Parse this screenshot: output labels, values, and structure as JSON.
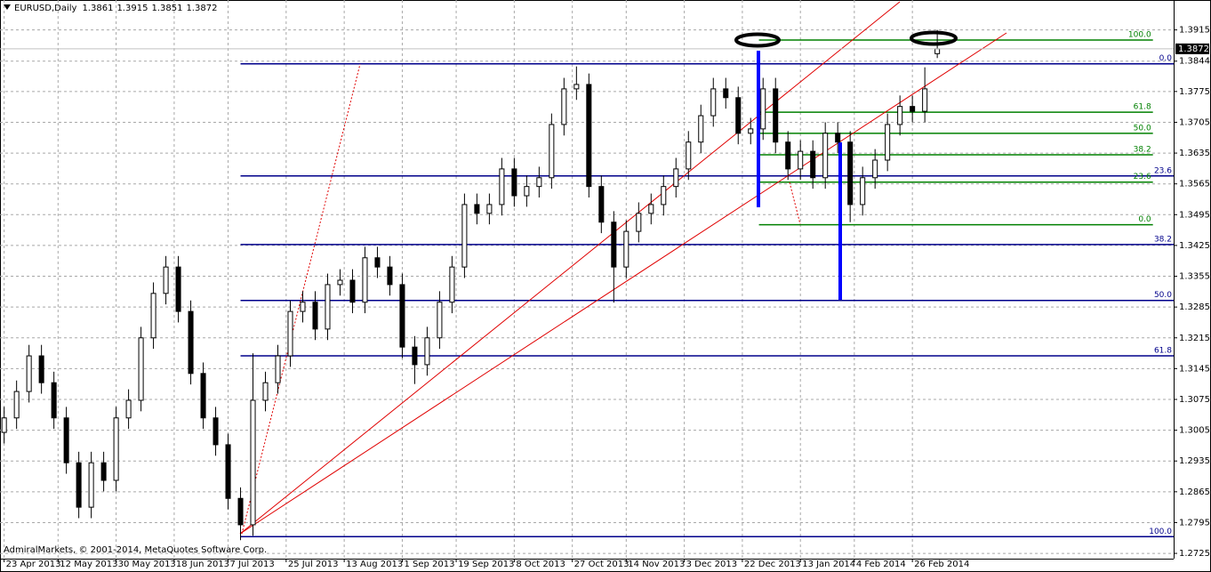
{
  "chart_data": {
    "type": "candlestick",
    "title": "EURUSD,Daily",
    "credit": "AdmiralMarkets, © 2001-2014, MetaQuotes Software Corp.",
    "up_color": "#ffffff",
    "down_color": "#000000",
    "grid": true,
    "xlim": [
      0,
      283
    ],
    "ylim": [
      1.2713,
      1.3983
    ],
    "xticks": [
      {
        "value": 1,
        "label": "23 Apr 2013"
      },
      {
        "value": 14,
        "label": "12 May 2013"
      },
      {
        "value": 28,
        "label": "30 May 2013"
      },
      {
        "value": 42,
        "label": "18 Jun 2013"
      },
      {
        "value": 55,
        "label": "7 Jul 2013"
      },
      {
        "value": 69,
        "label": "25 Jul 2013"
      },
      {
        "value": 83,
        "label": "13 Aug 2013"
      },
      {
        "value": 97,
        "label": "1 Sep 2013"
      },
      {
        "value": 110,
        "label": "19 Sep 2013"
      },
      {
        "value": 124,
        "label": "8 Oct 2013"
      },
      {
        "value": 138,
        "label": "27 Oct 2013"
      },
      {
        "value": 151,
        "label": "14 Nov 2013"
      },
      {
        "value": 165,
        "label": "3 Dec 2013"
      },
      {
        "value": 179,
        "label": "22 Dec 2013"
      },
      {
        "value": 193,
        "label": "13 Jan 2014"
      },
      {
        "value": 206,
        "label": "4 Feb 2014"
      },
      {
        "value": 220,
        "label": "26 Feb 2014"
      }
    ],
    "yticks": [
      1.3915,
      1.3844,
      1.3775,
      1.3705,
      1.3635,
      1.3565,
      1.3495,
      1.3425,
      1.3355,
      1.3285,
      1.3215,
      1.3145,
      1.3075,
      1.3005,
      1.2935,
      1.2865,
      1.2795,
      1.2725
    ],
    "x": [
      1,
      4,
      7,
      10,
      13,
      16,
      19,
      22,
      25,
      28,
      31,
      34,
      37,
      40,
      43,
      46,
      49,
      52,
      55,
      58,
      61,
      64,
      67,
      70,
      73,
      76,
      79,
      82,
      85,
      88,
      91,
      94,
      97,
      100,
      103,
      106,
      109,
      112,
      115,
      118,
      121,
      124,
      127,
      130,
      133,
      136,
      139,
      142,
      145,
      148,
      151,
      154,
      157,
      160,
      163,
      166,
      169,
      172,
      175,
      178,
      181,
      184,
      187,
      190,
      193,
      196,
      199,
      202,
      205,
      208,
      211,
      214,
      217,
      220,
      223,
      226
    ],
    "open": [
      1.3,
      1.3033,
      1.3093,
      1.3174,
      1.3113,
      1.3033,
      1.2931,
      1.283,
      1.2931,
      1.2891,
      1.3033,
      1.3073,
      1.3215,
      1.3316,
      1.3376,
      1.3275,
      1.3134,
      1.3033,
      1.2972,
      1.285,
      1.279,
      1.3073,
      1.3113,
      1.3174,
      1.3275,
      1.3296,
      1.3235,
      1.3336,
      1.3346,
      1.3296,
      1.3397,
      1.3376,
      1.3336,
      1.3194,
      1.3154,
      1.3215,
      1.3296,
      1.3376,
      1.3518,
      1.3498,
      1.3518,
      1.3599,
      1.3538,
      1.3559,
      1.3579,
      1.37,
      1.3781,
      1.3791,
      1.3559,
      1.3478,
      1.3376,
      1.3457,
      1.3498,
      1.3518,
      1.3559,
      1.3599,
      1.366,
      1.372,
      1.3781,
      1.3761,
      1.368,
      1.369,
      1.3781,
      1.366,
      1.3599,
      1.3639,
      1.3579,
      1.368,
      1.366,
      1.3518,
      1.3579,
      1.3619,
      1.37,
      1.3741,
      1.373,
      1.3861
    ],
    "high": [
      1.3058,
      1.3118,
      1.3199,
      1.3199,
      1.3138,
      1.3058,
      1.2956,
      1.2956,
      1.2956,
      1.3058,
      1.3098,
      1.324,
      1.3341,
      1.3401,
      1.3401,
      1.33,
      1.3159,
      1.3058,
      1.2997,
      1.2875,
      1.318,
      1.3138,
      1.3199,
      1.33,
      1.3321,
      1.3321,
      1.3361,
      1.3371,
      1.3371,
      1.3422,
      1.3422,
      1.3401,
      1.3361,
      1.3219,
      1.324,
      1.3321,
      1.3401,
      1.3543,
      1.3543,
      1.3543,
      1.3624,
      1.3624,
      1.3584,
      1.3604,
      1.3725,
      1.3806,
      1.3832,
      1.3816,
      1.3584,
      1.3503,
      1.3482,
      1.3523,
      1.3543,
      1.3584,
      1.3624,
      1.3685,
      1.3745,
      1.3806,
      1.3806,
      1.3786,
      1.3715,
      1.3806,
      1.3806,
      1.3685,
      1.3664,
      1.3664,
      1.3705,
      1.3705,
      1.3685,
      1.3604,
      1.3644,
      1.3725,
      1.3766,
      1.3766,
      1.383,
      1.3915
    ],
    "low": [
      1.2975,
      1.3008,
      1.3068,
      1.3088,
      1.3008,
      1.2906,
      1.2805,
      1.2805,
      1.2866,
      1.2866,
      1.3008,
      1.3048,
      1.319,
      1.3291,
      1.325,
      1.3109,
      1.3008,
      1.2947,
      1.2825,
      1.2755,
      1.2765,
      1.3048,
      1.3088,
      1.3149,
      1.325,
      1.321,
      1.321,
      1.3311,
      1.3271,
      1.3271,
      1.3351,
      1.3311,
      1.3169,
      1.311,
      1.3129,
      1.319,
      1.3271,
      1.3351,
      1.3473,
      1.3473,
      1.3493,
      1.3513,
      1.3513,
      1.3534,
      1.3554,
      1.3675,
      1.3756,
      1.3534,
      1.3453,
      1.3295,
      1.3351,
      1.3432,
      1.3473,
      1.3493,
      1.3534,
      1.3574,
      1.3635,
      1.3695,
      1.3736,
      1.3655,
      1.3655,
      1.3665,
      1.3635,
      1.3574,
      1.3574,
      1.3554,
      1.3554,
      1.3635,
      1.3478,
      1.3493,
      1.3554,
      1.3594,
      1.3675,
      1.3705,
      1.3705,
      1.3851
    ],
    "close": [
      1.3033,
      1.3093,
      1.3174,
      1.3113,
      1.3033,
      1.2931,
      1.283,
      1.2931,
      1.2891,
      1.3033,
      1.3073,
      1.3215,
      1.3316,
      1.3376,
      1.3275,
      1.3134,
      1.3033,
      1.2972,
      1.285,
      1.279,
      1.3073,
      1.3113,
      1.3174,
      1.3275,
      1.3296,
      1.3235,
      1.3336,
      1.3346,
      1.3296,
      1.3397,
      1.3376,
      1.3336,
      1.3194,
      1.3154,
      1.3215,
      1.3296,
      1.3376,
      1.3518,
      1.3498,
      1.3518,
      1.3599,
      1.3538,
      1.3559,
      1.3579,
      1.37,
      1.3781,
      1.3791,
      1.3559,
      1.3478,
      1.3376,
      1.3457,
      1.3498,
      1.3518,
      1.3559,
      1.3599,
      1.366,
      1.372,
      1.3781,
      1.3761,
      1.368,
      1.369,
      1.3781,
      1.366,
      1.3599,
      1.3639,
      1.3579,
      1.368,
      1.366,
      1.3518,
      1.3579,
      1.3619,
      1.37,
      1.3741,
      1.373,
      1.3781,
      1.3872
    ],
    "fibonacci": [
      {
        "color": "#00008b",
        "x": [
          58,
          283
        ],
        "levels": [
          {
            "label": "0.0",
            "price": 1.3838
          },
          {
            "label": "23.6",
            "price": 1.3583
          },
          {
            "label": "38.2",
            "price": 1.3427
          },
          {
            "label": "50.0",
            "price": 1.33
          },
          {
            "label": "61.8",
            "price": 1.3174
          },
          {
            "label": "100.0",
            "price": 1.2763
          }
        ]
      },
      {
        "color": "#008000",
        "x": [
          183,
          278
        ],
        "levels": [
          {
            "label": "100.0",
            "price": 1.3892
          },
          {
            "label": "61.8",
            "price": 1.3728
          },
          {
            "label": "50.0",
            "price": 1.368
          },
          {
            "label": "38.2",
            "price": 1.3631
          },
          {
            "label": "23.6",
            "price": 1.3569
          },
          {
            "label": "0.0",
            "price": 1.3472
          }
        ]
      }
    ]
  }
}
